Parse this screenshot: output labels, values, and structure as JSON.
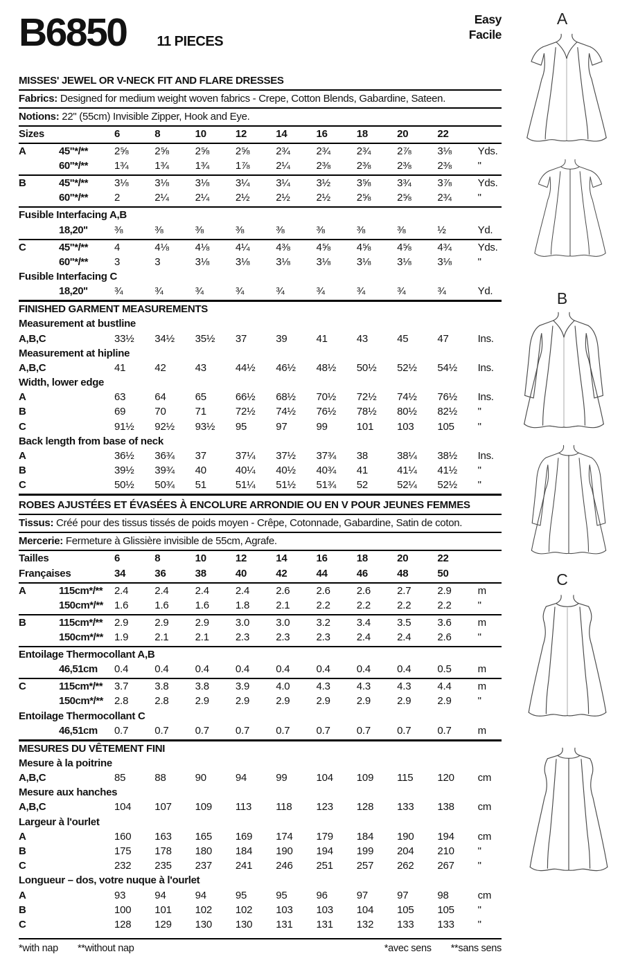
{
  "header": {
    "pattern_number": "B6850",
    "pieces": "11 PIECES",
    "difficulty_en": "Easy",
    "difficulty_fr": "Facile"
  },
  "english": {
    "title": "MISSES' JEWEL OR V-NECK FIT AND FLARE DRESSES",
    "fabrics_label": "Fabrics:",
    "fabrics_text": " Designed for medium weight woven fabrics - Crepe, Cotton Blends, Gabardine, Sateen.",
    "notions_label": "Notions:",
    "notions_text": " 22\" (55cm) Invisible Zipper, Hook and Eye.",
    "rows": [
      {
        "t": "h",
        "label": "Sizes",
        "values": [
          "6",
          "8",
          "10",
          "12",
          "14",
          "16",
          "18",
          "20",
          "22"
        ],
        "unit": "",
        "b": "b2"
      },
      {
        "t": "d",
        "label": "A",
        "sub": "45\"*/**",
        "values": [
          "2⅝",
          "2⅝",
          "2⅝",
          "2⅝",
          "2¾",
          "2¾",
          "2¾",
          "2⅞",
          "3⅛"
        ],
        "unit": "Yds."
      },
      {
        "t": "d",
        "label": "",
        "sub": "60\"*/**",
        "values": [
          "1¾",
          "1¾",
          "1¾",
          "1⅞",
          "2¼",
          "2⅜",
          "2⅜",
          "2⅜",
          "2⅜"
        ],
        "unit": "\"",
        "b": "b2"
      },
      {
        "t": "d",
        "label": "B",
        "sub": "45\"*/**",
        "values": [
          "3⅛",
          "3⅛",
          "3⅛",
          "3¼",
          "3¼",
          "3½",
          "3⅝",
          "3¾",
          "3⅞"
        ],
        "unit": "Yds."
      },
      {
        "t": "d",
        "label": "",
        "sub": "60\"*/**",
        "values": [
          "2",
          "2¼",
          "2¼",
          "2½",
          "2½",
          "2½",
          "2⅝",
          "2⅝",
          "2¾"
        ],
        "unit": "\"",
        "b": "b2"
      },
      {
        "t": "s",
        "text": "Fusible Interfacing A,B"
      },
      {
        "t": "d",
        "label": "",
        "sub": "18,20\"",
        "values": [
          "⅜",
          "⅜",
          "⅜",
          "⅜",
          "⅜",
          "⅜",
          "⅜",
          "⅜",
          "½"
        ],
        "unit": "Yd.",
        "b": "b2"
      },
      {
        "t": "d",
        "label": "C",
        "sub": "45\"*/**",
        "values": [
          "4",
          "4⅛",
          "4⅛",
          "4¼",
          "4⅜",
          "4⅝",
          "4⅝",
          "4⅝",
          "4¾"
        ],
        "unit": "Yds."
      },
      {
        "t": "d",
        "label": "",
        "sub": "60\"*/**",
        "values": [
          "3",
          "3",
          "3⅛",
          "3⅛",
          "3⅛",
          "3⅛",
          "3⅛",
          "3⅛",
          "3⅛"
        ],
        "unit": "\""
      },
      {
        "t": "s",
        "text": "Fusible Interfacing C"
      },
      {
        "t": "d",
        "label": "",
        "sub": "18,20\"",
        "values": [
          "¾",
          "¾",
          "¾",
          "¾",
          "¾",
          "¾",
          "¾",
          "¾",
          "¾"
        ],
        "unit": "Yd.",
        "b": "b3"
      },
      {
        "t": "s",
        "text": "FINISHED GARMENT MEASUREMENTS"
      },
      {
        "t": "s",
        "text": "Measurement at bustline"
      },
      {
        "t": "d",
        "label": "A,B,C",
        "sub": "",
        "values": [
          "33½",
          "34½",
          "35½",
          "37",
          "39",
          "41",
          "43",
          "45",
          "47"
        ],
        "unit": "Ins."
      },
      {
        "t": "s",
        "text": "Measurement at hipline"
      },
      {
        "t": "d",
        "label": "A,B,C",
        "sub": "",
        "values": [
          "41",
          "42",
          "43",
          "44½",
          "46½",
          "48½",
          "50½",
          "52½",
          "54½"
        ],
        "unit": "Ins."
      },
      {
        "t": "s",
        "text": "Width, lower edge"
      },
      {
        "t": "d",
        "label": "A",
        "sub": "",
        "values": [
          "63",
          "64",
          "65",
          "66½",
          "68½",
          "70½",
          "72½",
          "74½",
          "76½"
        ],
        "unit": "Ins."
      },
      {
        "t": "d",
        "label": "B",
        "sub": "",
        "values": [
          "69",
          "70",
          "71",
          "72½",
          "74½",
          "76½",
          "78½",
          "80½",
          "82½"
        ],
        "unit": "\""
      },
      {
        "t": "d",
        "label": "C",
        "sub": "",
        "values": [
          "91½",
          "92½",
          "93½",
          "95",
          "97",
          "99",
          "101",
          "103",
          "105"
        ],
        "unit": "\""
      },
      {
        "t": "s",
        "text": "Back length from base of neck"
      },
      {
        "t": "d",
        "label": "A",
        "sub": "",
        "values": [
          "36½",
          "36¾",
          "37",
          "37¼",
          "37½",
          "37¾",
          "38",
          "38¼",
          "38½"
        ],
        "unit": "Ins."
      },
      {
        "t": "d",
        "label": "B",
        "sub": "",
        "values": [
          "39½",
          "39¾",
          "40",
          "40¼",
          "40½",
          "40¾",
          "41",
          "41¼",
          "41½"
        ],
        "unit": "\""
      },
      {
        "t": "d",
        "label": "C",
        "sub": "",
        "values": [
          "50½",
          "50¾",
          "51",
          "51¼",
          "51½",
          "51¾",
          "52",
          "52¼",
          "52½"
        ],
        "unit": "\"",
        "b": "b3"
      }
    ]
  },
  "french": {
    "headline": "ROBES AJUSTÉES ET ÉVASÉES À ENCOLURE ARRONDIE OU EN V POUR JEUNES FEMMES",
    "tissus_label": "Tissus:",
    "tissus_text": " Créé pour des tissus tissés de poids moyen - Crêpe, Cotonnade, Gabardine, Satin de coton.",
    "mercerie_label": "Mercerie:",
    "mercerie_text": " Fermeture à Glissière invisible de 55cm, Agrafe.",
    "rows": [
      {
        "t": "h",
        "label": "Tailles",
        "values": [
          "6",
          "8",
          "10",
          "12",
          "14",
          "16",
          "18",
          "20",
          "22"
        ],
        "unit": ""
      },
      {
        "t": "h",
        "label": "Françaises",
        "values": [
          "34",
          "36",
          "38",
          "40",
          "42",
          "44",
          "46",
          "48",
          "50"
        ],
        "unit": "",
        "b": "b2"
      },
      {
        "t": "d",
        "label": "A",
        "sub": "115cm*/**",
        "values": [
          "2.4",
          "2.4",
          "2.4",
          "2.4",
          "2.6",
          "2.6",
          "2.6",
          "2.7",
          "2.9"
        ],
        "unit": "m"
      },
      {
        "t": "d",
        "label": "",
        "sub": "150cm*/**",
        "values": [
          "1.6",
          "1.6",
          "1.6",
          "1.8",
          "2.1",
          "2.2",
          "2.2",
          "2.2",
          "2.2"
        ],
        "unit": "\"",
        "b": "b2"
      },
      {
        "t": "d",
        "label": "B",
        "sub": "115cm*/**",
        "values": [
          "2.9",
          "2.9",
          "2.9",
          "3.0",
          "3.0",
          "3.2",
          "3.4",
          "3.5",
          "3.6"
        ],
        "unit": "m"
      },
      {
        "t": "d",
        "label": "",
        "sub": "150cm*/**",
        "values": [
          "1.9",
          "2.1",
          "2.1",
          "2.3",
          "2.3",
          "2.3",
          "2.4",
          "2.4",
          "2.6"
        ],
        "unit": "\"",
        "b": "b2"
      },
      {
        "t": "s",
        "text": "Entoilage Thermocollant A,B"
      },
      {
        "t": "d",
        "label": "",
        "sub": "46,51cm",
        "values": [
          "0.4",
          "0.4",
          "0.4",
          "0.4",
          "0.4",
          "0.4",
          "0.4",
          "0.4",
          "0.5"
        ],
        "unit": "m",
        "b": "b2"
      },
      {
        "t": "d",
        "label": "C",
        "sub": "115cm*/**",
        "values": [
          "3.7",
          "3.8",
          "3.8",
          "3.9",
          "4.0",
          "4.3",
          "4.3",
          "4.3",
          "4.4"
        ],
        "unit": "m"
      },
      {
        "t": "d",
        "label": "",
        "sub": "150cm*/**",
        "values": [
          "2.8",
          "2.8",
          "2.9",
          "2.9",
          "2.9",
          "2.9",
          "2.9",
          "2.9",
          "2.9"
        ],
        "unit": "\""
      },
      {
        "t": "s",
        "text": "Entoilage Thermocollant C"
      },
      {
        "t": "d",
        "label": "",
        "sub": "46,51cm",
        "values": [
          "0.7",
          "0.7",
          "0.7",
          "0.7",
          "0.7",
          "0.7",
          "0.7",
          "0.7",
          "0.7"
        ],
        "unit": "m",
        "b": "b3"
      },
      {
        "t": "s",
        "text": "MESURES DU VÊTEMENT FINI"
      },
      {
        "t": "s",
        "text": "Mesure à la poitrine"
      },
      {
        "t": "d",
        "label": "A,B,C",
        "sub": "",
        "values": [
          "85",
          "88",
          "90",
          "94",
          "99",
          "104",
          "109",
          "115",
          "120"
        ],
        "unit": "cm"
      },
      {
        "t": "s",
        "text": "Mesure aux hanches"
      },
      {
        "t": "d",
        "label": "A,B,C",
        "sub": "",
        "values": [
          "104",
          "107",
          "109",
          "113",
          "118",
          "123",
          "128",
          "133",
          "138"
        ],
        "unit": "cm"
      },
      {
        "t": "s",
        "text": "Largeur à l'ourlet"
      },
      {
        "t": "d",
        "label": "A",
        "sub": "",
        "values": [
          "160",
          "163",
          "165",
          "169",
          "174",
          "179",
          "184",
          "190",
          "194"
        ],
        "unit": "cm"
      },
      {
        "t": "d",
        "label": "B",
        "sub": "",
        "values": [
          "175",
          "178",
          "180",
          "184",
          "190",
          "194",
          "199",
          "204",
          "210"
        ],
        "unit": "\""
      },
      {
        "t": "d",
        "label": "C",
        "sub": "",
        "values": [
          "232",
          "235",
          "237",
          "241",
          "246",
          "251",
          "257",
          "262",
          "267"
        ],
        "unit": "\""
      },
      {
        "t": "s",
        "text": "Longueur – dos, votre nuque à l'ourlet"
      },
      {
        "t": "d",
        "label": "A",
        "sub": "",
        "values": [
          "93",
          "94",
          "94",
          "95",
          "95",
          "96",
          "97",
          "97",
          "98"
        ],
        "unit": "cm"
      },
      {
        "t": "d",
        "label": "B",
        "sub": "",
        "values": [
          "100",
          "101",
          "102",
          "102",
          "103",
          "103",
          "104",
          "105",
          "105"
        ],
        "unit": "\""
      },
      {
        "t": "d",
        "label": "C",
        "sub": "",
        "values": [
          "128",
          "129",
          "130",
          "130",
          "131",
          "131",
          "132",
          "133",
          "133"
        ],
        "unit": "\""
      }
    ]
  },
  "footer": {
    "with_nap": "*with nap",
    "without_nap": "**without nap",
    "avec_sens": "*avec sens",
    "sans_sens": "**sans sens"
  },
  "figures": {
    "label_a": "A",
    "label_b": "B",
    "label_c": "C"
  }
}
